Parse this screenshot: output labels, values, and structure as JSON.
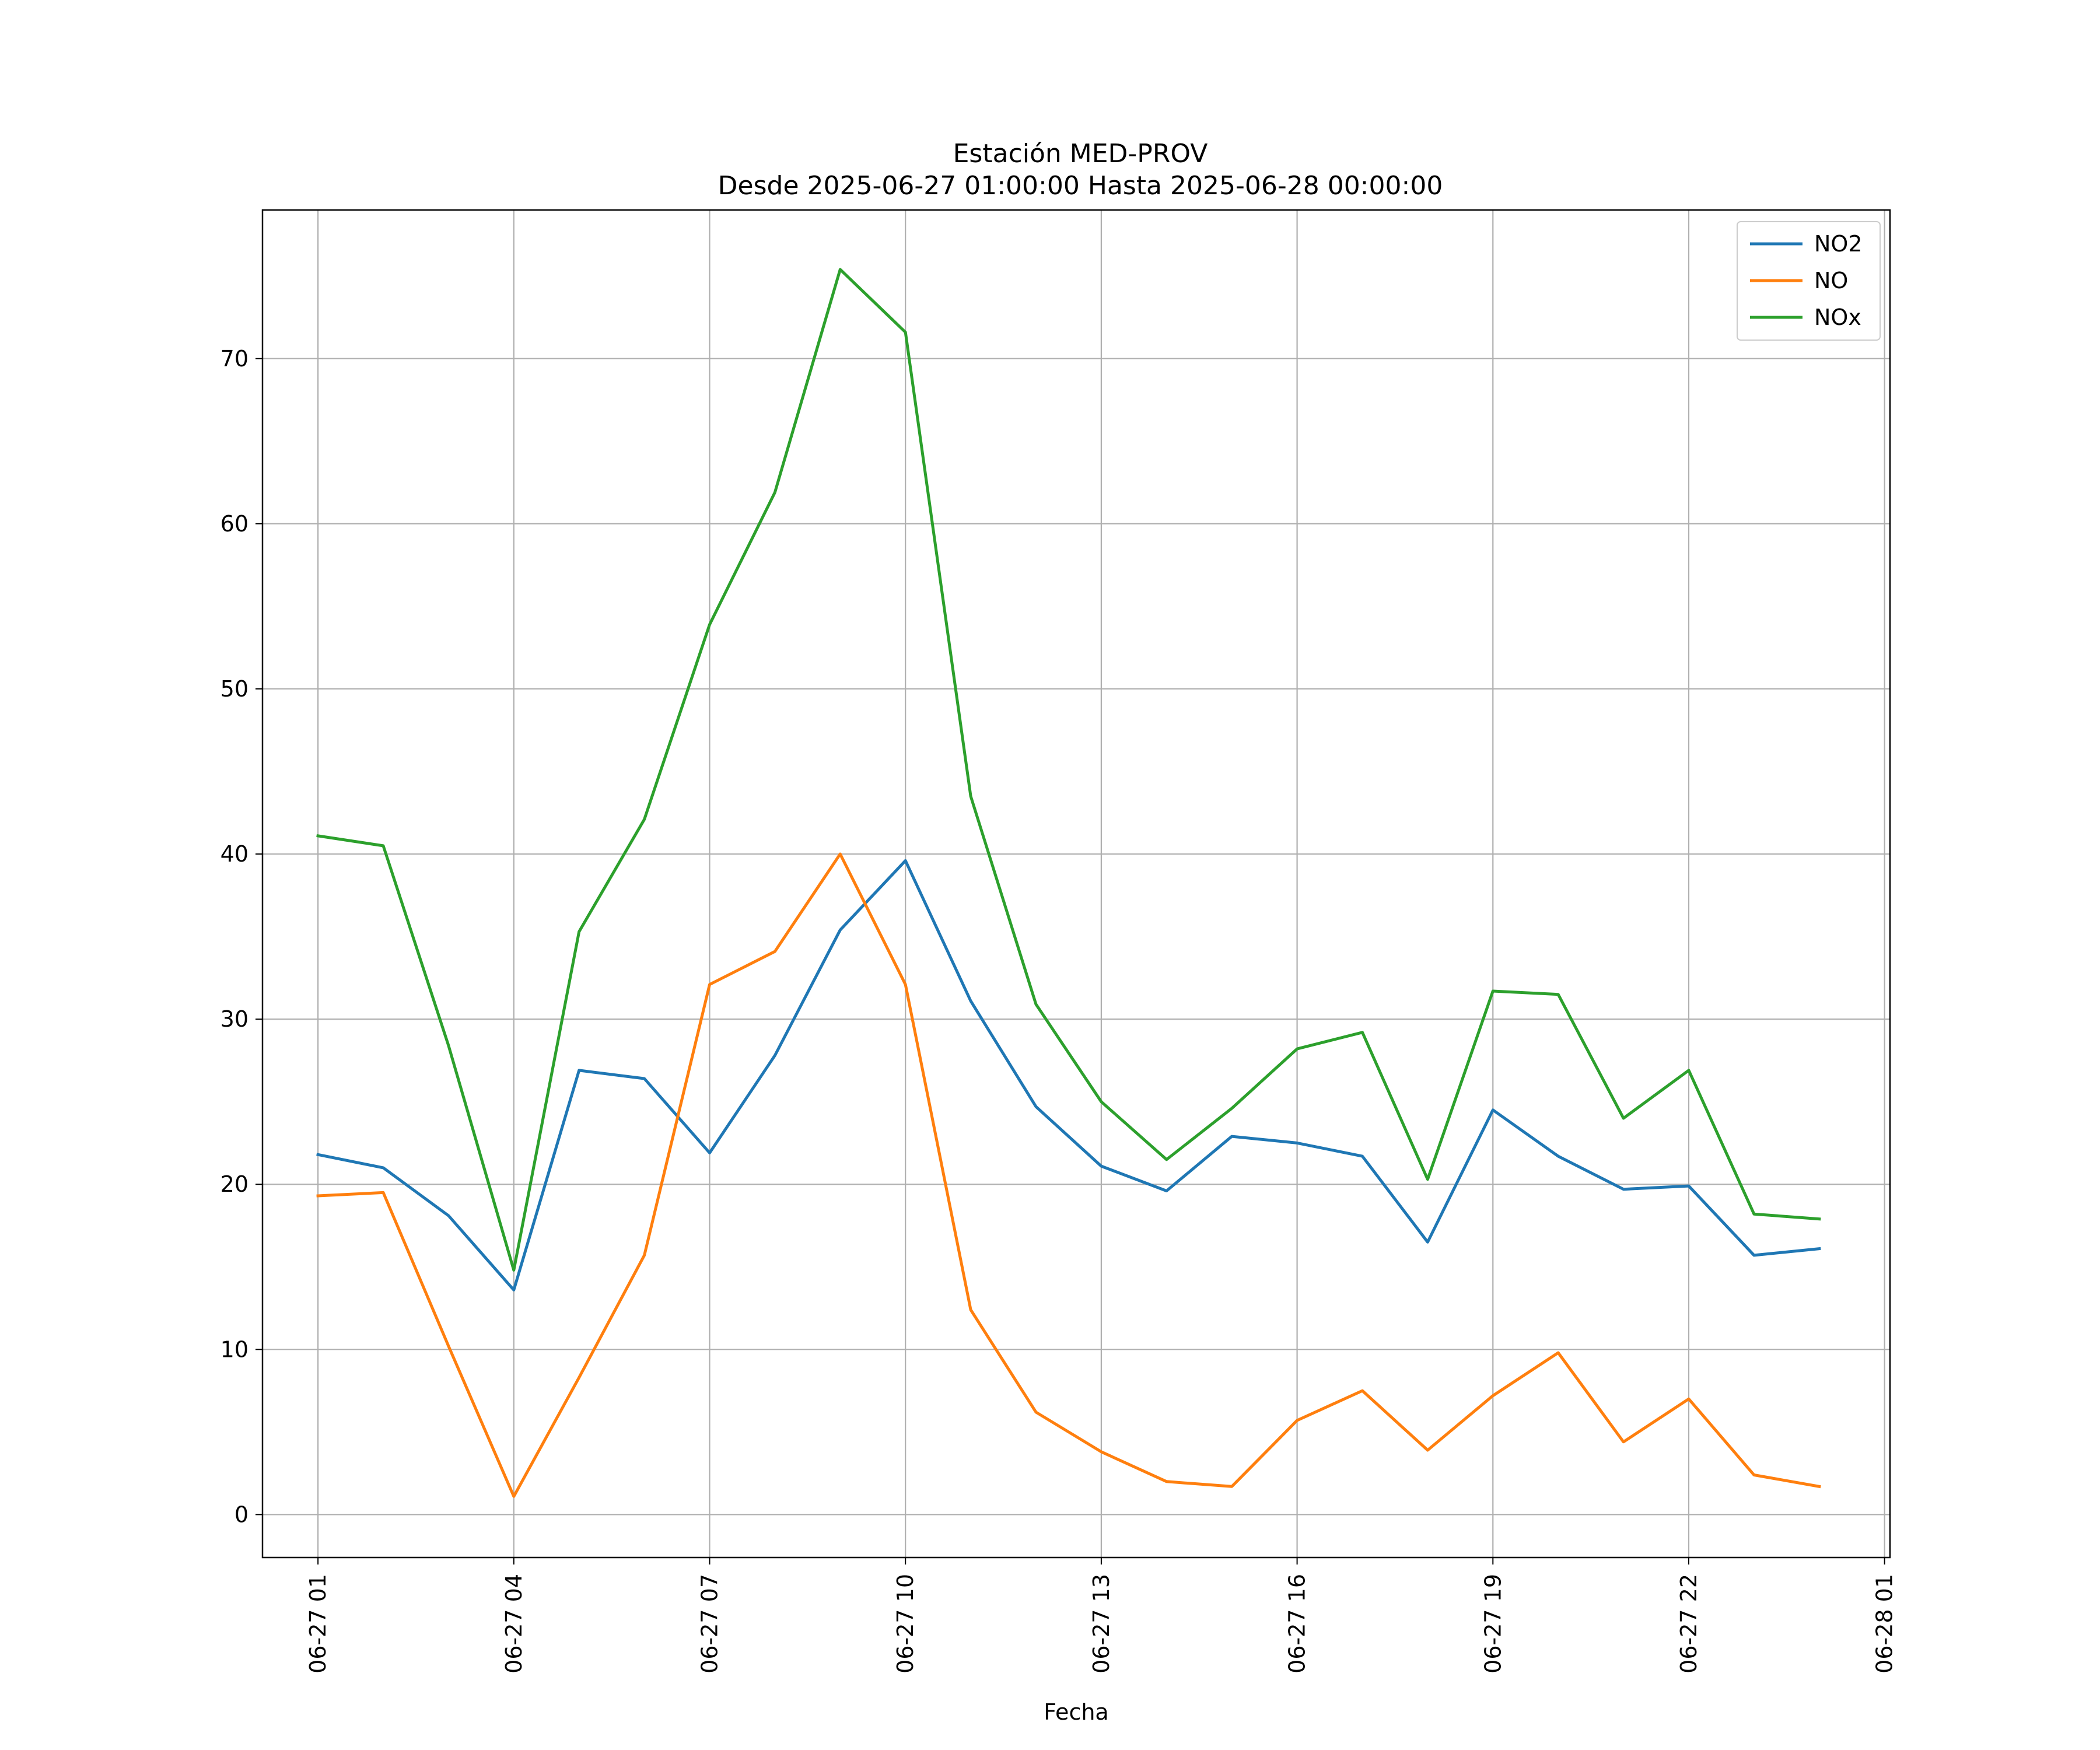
{
  "chart_data": {
    "type": "line",
    "title": "Estación MED-PROV",
    "subtitle": "Desde 2025-06-27 01:00:00 Hasta 2025-06-28 00:00:00",
    "xlabel": "Fecha",
    "ylabel": "",
    "x": [
      "2025-06-27 01:00",
      "2025-06-27 02:00",
      "2025-06-27 03:00",
      "2025-06-27 04:00",
      "2025-06-27 05:00",
      "2025-06-27 06:00",
      "2025-06-27 07:00",
      "2025-06-27 08:00",
      "2025-06-27 09:00",
      "2025-06-27 10:00",
      "2025-06-27 11:00",
      "2025-06-27 12:00",
      "2025-06-27 13:00",
      "2025-06-27 14:00",
      "2025-06-27 15:00",
      "2025-06-27 16:00",
      "2025-06-27 17:00",
      "2025-06-27 18:00",
      "2025-06-27 19:00",
      "2025-06-27 20:00",
      "2025-06-27 21:00",
      "2025-06-27 22:00",
      "2025-06-27 23:00",
      "2025-06-28 00:00"
    ],
    "x_ticks": [
      "2025-06-27 01:00",
      "2025-06-27 04:00",
      "2025-06-27 07:00",
      "2025-06-27 10:00",
      "2025-06-27 13:00",
      "2025-06-27 16:00",
      "2025-06-27 19:00",
      "2025-06-27 22:00",
      "2025-06-28 01:00"
    ],
    "x_tick_labels": [
      "06-27 01",
      "06-27 04",
      "06-27 07",
      "06-27 10",
      "06-27 13",
      "06-27 16",
      "06-27 19",
      "06-27 22",
      "06-28 01"
    ],
    "xlim": [
      "2025-06-27 00:09",
      "2025-06-28 01:05"
    ],
    "y_ticks": [
      0,
      10,
      20,
      30,
      40,
      50,
      60,
      70
    ],
    "ylim": [
      -2.6,
      79.0
    ],
    "grid": true,
    "legend_position": "top-right",
    "series": [
      {
        "name": "NO2",
        "color": "#1f77b4",
        "values": [
          21.8,
          21.0,
          18.1,
          13.6,
          26.9,
          26.4,
          21.9,
          27.8,
          35.4,
          39.6,
          31.1,
          24.7,
          21.1,
          19.6,
          22.9,
          22.5,
          21.7,
          16.5,
          24.5,
          21.7,
          19.7,
          19.9,
          15.7,
          16.1
        ]
      },
      {
        "name": "NO",
        "color": "#ff7f0e",
        "values": [
          19.3,
          19.5,
          10.2,
          1.1,
          8.3,
          15.7,
          32.1,
          34.1,
          40.0,
          32.1,
          12.4,
          6.2,
          3.8,
          2.0,
          1.7,
          5.7,
          7.5,
          3.9,
          7.2,
          9.8,
          4.4,
          7.0,
          2.4,
          1.7
        ]
      },
      {
        "name": "NOx",
        "color": "#2ca02c",
        "values": [
          41.1,
          40.5,
          28.4,
          14.8,
          35.3,
          42.1,
          53.9,
          61.9,
          75.4,
          71.6,
          43.5,
          30.9,
          25.0,
          21.5,
          24.6,
          28.2,
          29.2,
          20.3,
          31.7,
          31.5,
          24.0,
          26.9,
          18.2,
          17.9
        ]
      }
    ]
  }
}
